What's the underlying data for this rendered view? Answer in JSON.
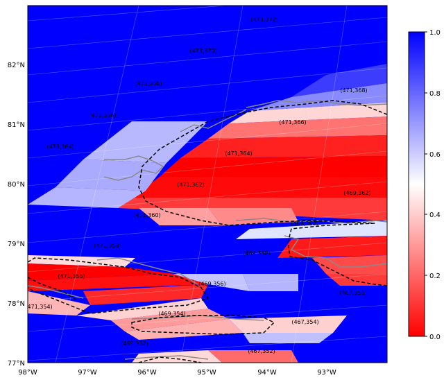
{
  "map": {
    "lon_ticks": [
      "98°W",
      "97°W",
      "96°W",
      "95°W",
      "94°W",
      "93°W"
    ],
    "lat_ticks": [
      "77°N",
      "78°N",
      "79°N",
      "80°N",
      "81°N",
      "82°N"
    ],
    "extent": {
      "lon": [
        -98,
        -92
      ],
      "lat": [
        77,
        83
      ]
    },
    "colorbar": {
      "ticks": [
        "0.0",
        "0.2",
        "0.4",
        "0.6",
        "0.8",
        "1.0"
      ],
      "colormap": "bwr_r",
      "low_color": "#ff0000",
      "mid_color": "#ffffff",
      "high_color": "#0000ff"
    },
    "cells": [
      {
        "label": "(473,372)",
        "value": 1.0
      },
      {
        "label": "(473,370)",
        "value": 1.0
      },
      {
        "label": "(473,368)",
        "value": 1.0
      },
      {
        "label": "(473,366)",
        "value": 1.0
      },
      {
        "label": "(473,364)",
        "value": 1.0
      },
      {
        "label": "(471,368)",
        "value": 1.0
      },
      {
        "label": "(471,366)",
        "value": 0.2
      },
      {
        "label": "(471,364)",
        "value": 0.1
      },
      {
        "label": "(471,362)",
        "value": 0.3
      },
      {
        "label": "(471,360)",
        "value": 0.8
      },
      {
        "label": "(471,358)",
        "value": 1.0
      },
      {
        "label": "(471,356)",
        "value": 0.0
      },
      {
        "label": "(471,354)",
        "value": 1.0
      },
      {
        "label": "(469,362)",
        "value": 0.0
      },
      {
        "label": "(469,360)",
        "value": 0.8
      },
      {
        "label": "(469,358)",
        "value": 0.9
      },
      {
        "label": "(469,356)",
        "value": 0.7
      },
      {
        "label": "(469,354)",
        "value": 0.3
      },
      {
        "label": "(469,352)",
        "value": 1.0
      },
      {
        "label": "(467,356)",
        "value": 1.0
      },
      {
        "label": "(467,354)",
        "value": 0.9
      },
      {
        "label": "(467,352)",
        "value": 1.0
      }
    ]
  }
}
